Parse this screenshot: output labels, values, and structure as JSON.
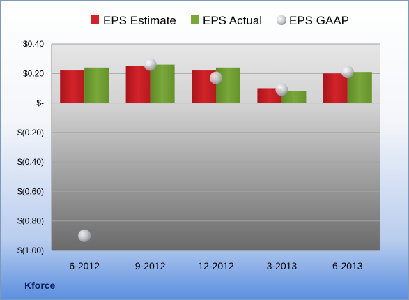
{
  "company_label": "Kforce",
  "colors": {
    "estimate": "#d2232a",
    "actual": "#7aa73a",
    "gaap": "#c9ccd3",
    "gridline": "#a0a0a0",
    "plot_top": "#e6e6e6",
    "plot_bottom": "#6a6a6a"
  },
  "chart_data": {
    "type": "bar",
    "categories": [
      "6-2012",
      "9-2012",
      "12-2012",
      "3-2013",
      "6-2013"
    ],
    "series": [
      {
        "name": "EPS Estimate",
        "kind": "bar",
        "values": [
          0.22,
          0.25,
          0.22,
          0.1,
          0.2
        ]
      },
      {
        "name": "EPS Actual",
        "kind": "bar",
        "values": [
          0.24,
          0.26,
          0.24,
          0.08,
          0.21
        ]
      },
      {
        "name": "EPS GAAP",
        "kind": "scatter",
        "values": [
          -0.9,
          0.26,
          0.17,
          0.09,
          0.21
        ]
      }
    ],
    "yticks": [
      0.4,
      0.2,
      0,
      -0.2,
      -0.4,
      -0.6,
      -0.8,
      -1.0
    ],
    "ytick_labels": [
      "$0.40",
      "$0.20",
      "$-",
      "$(0.20)",
      "$(0.40)",
      "$(0.60)",
      "$(0.80)",
      "$(1.00)"
    ],
    "ylim": [
      -1.0,
      0.4
    ],
    "legend_position": "top",
    "grid": true
  }
}
